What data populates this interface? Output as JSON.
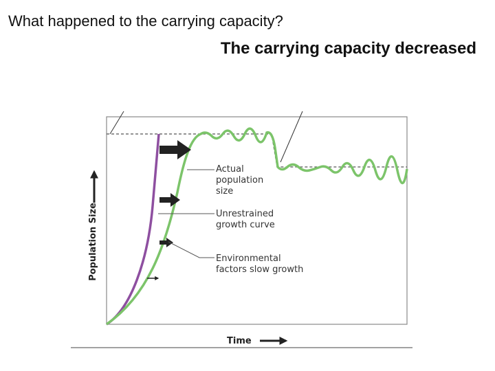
{
  "question": "What happened to the carrying capacity?",
  "answer": "The carrying capacity decreased",
  "diagram": {
    "y_axis_label": "Population Size",
    "x_axis_label": "Time",
    "annotations": [
      {
        "lines": [
          "Actual",
          "population",
          "size"
        ]
      },
      {
        "lines": [
          "Unrestrained",
          "growth curve"
        ]
      },
      {
        "lines": [
          "Environmental",
          "factors slow growth"
        ]
      }
    ]
  }
}
